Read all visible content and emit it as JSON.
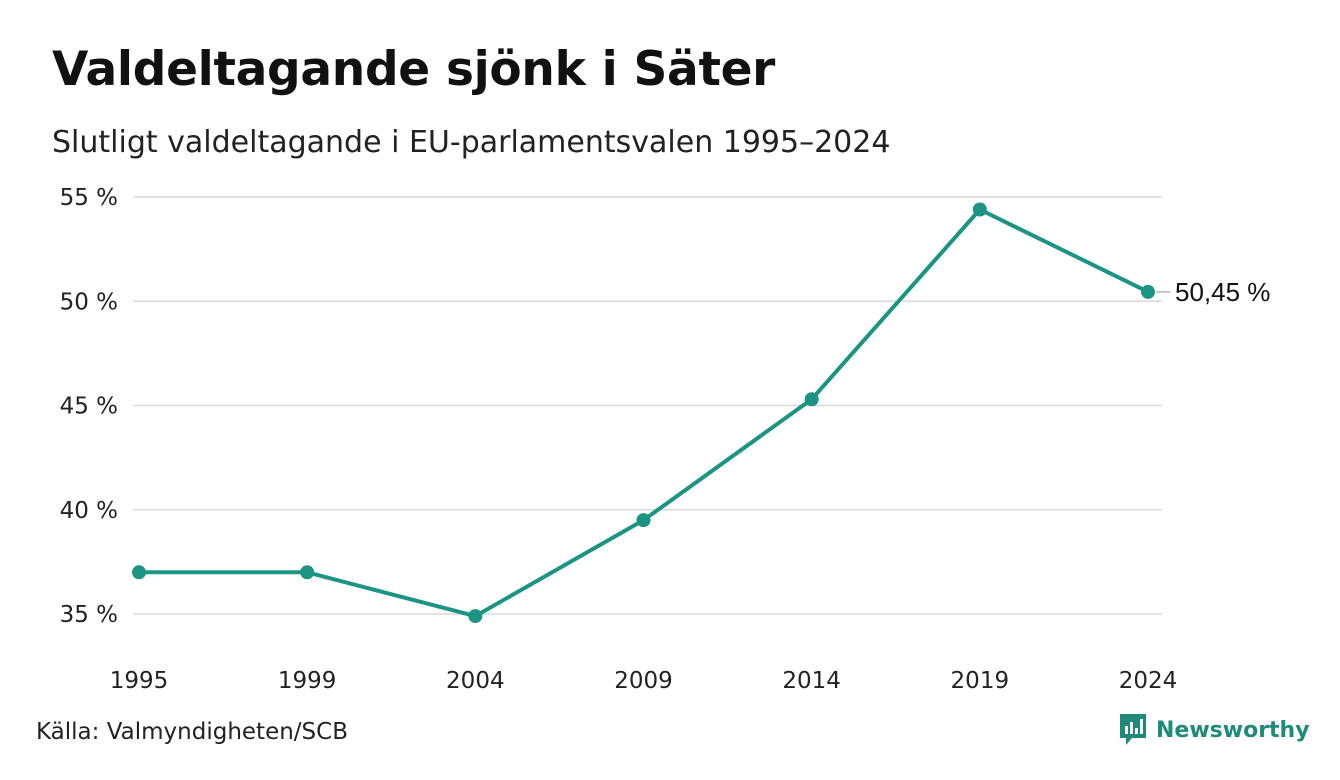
{
  "header": {
    "title": "Valdeltagande sjönk i Säter",
    "subtitle": "Slutligt valdeltagande i EU-parlamentsvalen 1995–2024"
  },
  "footer": {
    "source": "Källa: Valmyndigheten/SCB",
    "brand": "Newsworthy",
    "brand_icon": "newsworthy-logo-icon"
  },
  "colors": {
    "line": "#1b9484",
    "grid": "#d9d9d9",
    "brand": "#1f8a7a"
  },
  "chart_data": {
    "type": "line",
    "title": "Valdeltagande sjönk i Säter",
    "subtitle": "Slutligt valdeltagande i EU-parlamentsvalen 1995–2024",
    "x": [
      "1995",
      "1999",
      "2004",
      "2009",
      "2014",
      "2019",
      "2024"
    ],
    "series": [
      {
        "values": [
          37.0,
          37.0,
          34.9,
          39.5,
          45.3,
          54.4,
          50.45
        ]
      }
    ],
    "ylim": [
      35,
      55
    ],
    "yticks": [
      55,
      50,
      45,
      40,
      35
    ],
    "ytick_labels": [
      "55 %",
      "50 %",
      "45 %",
      "40 %",
      "35 %"
    ],
    "end_label": "50,45 %",
    "grid": true,
    "legend": "none"
  }
}
